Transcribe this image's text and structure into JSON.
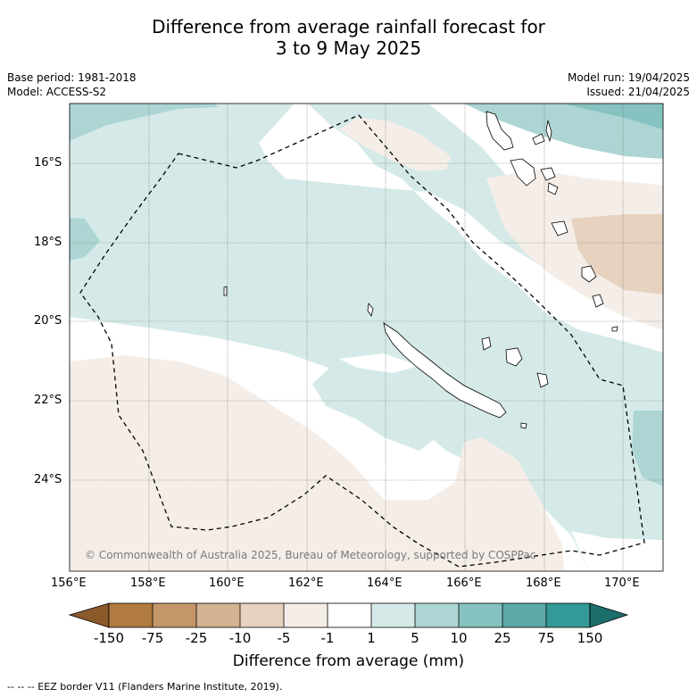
{
  "title_line1": "Difference from average rainfall forecast for",
  "title_line2": "3 to 9 May 2025",
  "meta": {
    "base_period": "Base period: 1981-2018",
    "model": "Model: ACCESS-S2",
    "model_run": "Model run: 19/04/2025",
    "issued": "Issued: 21/04/2025"
  },
  "copyright": "© Commonwealth of Australia 2025, Bureau of Meteorology, supported by COSPPac",
  "lat_labels": [
    "16°S",
    "18°S",
    "20°S",
    "22°S",
    "24°S"
  ],
  "lon_labels": [
    "156°E",
    "158°E",
    "160°E",
    "162°E",
    "164°E",
    "166°E",
    "168°E",
    "170°E"
  ],
  "colorbar": {
    "title": "Difference from average (mm)",
    "tick_labels": [
      "-150",
      "-75",
      "-25",
      "-10",
      "-5",
      "-1",
      "1",
      "5",
      "10",
      "25",
      "75",
      "150"
    ],
    "colors": {
      "lt_-150": "#8b5a2b",
      "-150_-75": "#b07a40",
      "-75_-25": "#c4966a",
      "-25_-10": "#d4b392",
      "-10_-5": "#e6d2bf",
      "-5_-1": "#f5eee8",
      "-1_1": "#ffffff",
      "1_5": "#d5eae8",
      "5_10": "#acd5d4",
      "10_25": "#86c2c0",
      "25_75": "#5ba9a8",
      "75_150": "#349a97",
      "gt_150": "#1c6e6c"
    }
  },
  "footnote": "-- -- -- EEZ border V11 (Flanders Marine Institute, 2019)."
}
